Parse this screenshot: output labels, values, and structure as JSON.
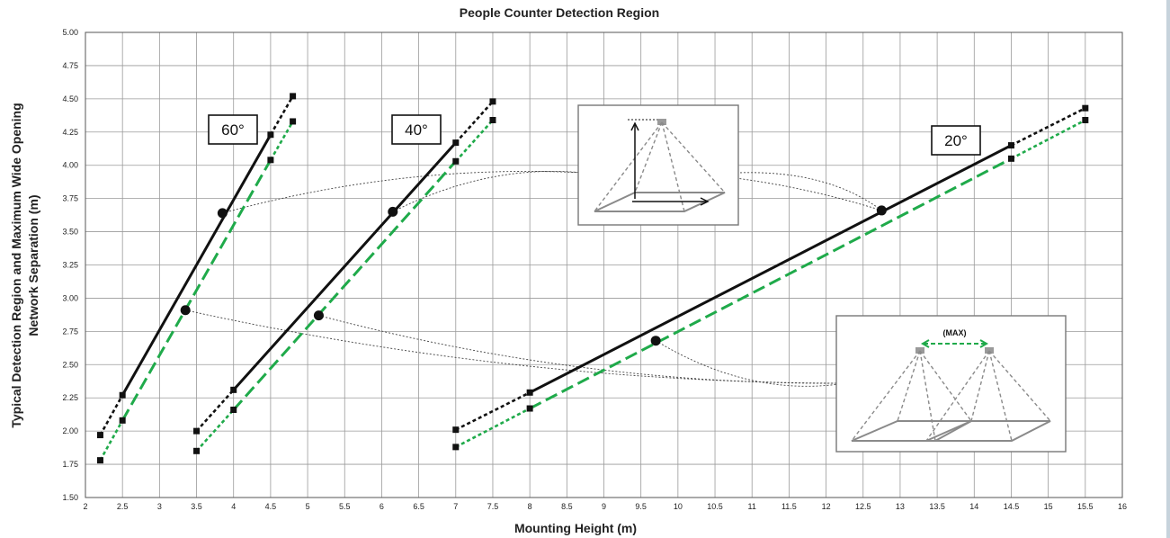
{
  "chart_data": {
    "type": "line",
    "title": "People Counter Detection Region",
    "xlabel": "Mounting Height (m)",
    "ylabel_line1": "Typical Detection Region and Maximum Wide Opening",
    "ylabel_line2": "Network Separation (m)",
    "xlim": [
      2,
      16
    ],
    "ylim": [
      1.5,
      5.0
    ],
    "x_ticks": [
      "2",
      "2.5",
      "3",
      "3.5",
      "4",
      "4.5",
      "5",
      "5.5",
      "6",
      "6.5",
      "7",
      "7.5",
      "8",
      "8.5",
      "9",
      "9.5",
      "10",
      "10.5",
      "11",
      "11.5",
      "12",
      "12.5",
      "13",
      "13.5",
      "14",
      "14.5",
      "15",
      "15.5",
      "16"
    ],
    "y_ticks": [
      "1.50",
      "1.75",
      "2.00",
      "2.25",
      "2.50",
      "2.75",
      "3.00",
      "3.25",
      "3.50",
      "3.75",
      "4.00",
      "4.25",
      "4.50",
      "4.75",
      "5.00"
    ],
    "grid": true,
    "colors": {
      "detection_region": "#111111",
      "max_separation": "#1faa4a",
      "leader": "#444444",
      "inset_frame": "#777777",
      "inset_lines": "#8a8a8a"
    },
    "groups": [
      {
        "angle_label": "60°",
        "series": [
          {
            "role": "detection_region",
            "points": [
              [
                2.2,
                1.97
              ],
              [
                2.5,
                2.27
              ],
              [
                4.5,
                4.23
              ],
              [
                4.8,
                4.52
              ]
            ],
            "solid_from": 1,
            "solid_to": 2
          },
          {
            "role": "max_separation",
            "points": [
              [
                2.2,
                1.78
              ],
              [
                2.5,
                2.08
              ],
              [
                4.5,
                4.04
              ],
              [
                4.8,
                4.33
              ]
            ],
            "solid_from": 1,
            "solid_to": 2
          }
        ],
        "callouts": [
          [
            3.85,
            3.64
          ],
          [
            3.35,
            2.91
          ]
        ]
      },
      {
        "angle_label": "40°",
        "series": [
          {
            "role": "detection_region",
            "points": [
              [
                3.5,
                2.0
              ],
              [
                4.0,
                2.31
              ],
              [
                7.0,
                4.17
              ],
              [
                7.5,
                4.48
              ]
            ],
            "solid_from": 1,
            "solid_to": 2
          },
          {
            "role": "max_separation",
            "points": [
              [
                3.5,
                1.85
              ],
              [
                4.0,
                2.16
              ],
              [
                7.0,
                4.03
              ],
              [
                7.5,
                4.34
              ]
            ],
            "solid_from": 1,
            "solid_to": 2
          }
        ],
        "callouts": [
          [
            6.15,
            3.65
          ],
          [
            5.15,
            2.87
          ]
        ]
      },
      {
        "angle_label": "20°",
        "series": [
          {
            "role": "detection_region",
            "points": [
              [
                7.0,
                2.01
              ],
              [
                8.0,
                2.29
              ],
              [
                14.5,
                4.15
              ],
              [
                15.5,
                4.43
              ]
            ],
            "solid_from": 1,
            "solid_to": 2
          },
          {
            "role": "max_separation",
            "points": [
              [
                7.0,
                1.88
              ],
              [
                8.0,
                2.17
              ],
              [
                14.5,
                4.05
              ],
              [
                15.5,
                4.34
              ]
            ],
            "solid_from": 1,
            "solid_to": 2
          }
        ],
        "callouts": [
          [
            12.75,
            3.66
          ],
          [
            9.7,
            2.68
          ]
        ]
      }
    ],
    "insets": [
      {
        "kind": "single-sensor-detection-region"
      },
      {
        "kind": "two-sensor-max-separation",
        "label": "(MAX)"
      }
    ]
  }
}
